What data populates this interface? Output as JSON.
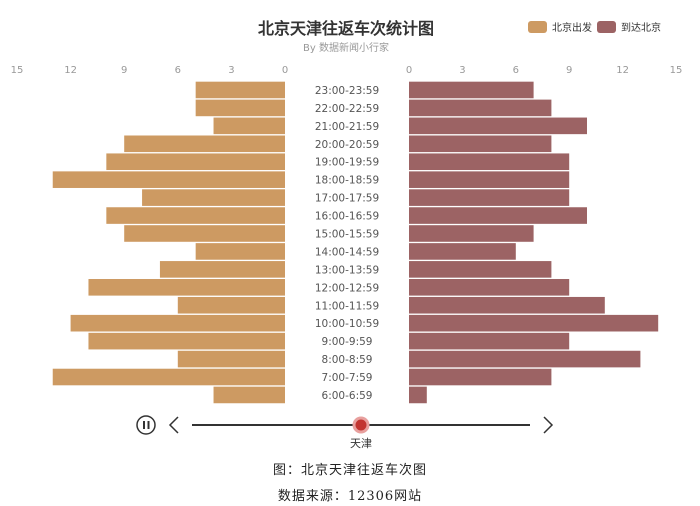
{
  "chart_data": {
    "type": "bar",
    "layout": "butterfly",
    "title": "北京天津往返车次统计图",
    "subtitle": "By 数据新闻小行家",
    "categories": [
      "23:00-23:59",
      "22:00-22:59",
      "21:00-21:59",
      "20:00-20:59",
      "19:00-19:59",
      "18:00-18:59",
      "17:00-17:59",
      "16:00-16:59",
      "15:00-15:59",
      "14:00-14:59",
      "13:00-13:59",
      "12:00-12:59",
      "11:00-11:59",
      "10:00-10:59",
      "9:00-9:59",
      "8:00-8:59",
      "7:00-7:59",
      "6:00-6:59"
    ],
    "series": [
      {
        "name": "北京出发",
        "color": "#cd9a62",
        "values": [
          5,
          5,
          4,
          9,
          10,
          13,
          8,
          10,
          9,
          5,
          7,
          11,
          6,
          12,
          11,
          6,
          13,
          4
        ]
      },
      {
        "name": "到达北京",
        "color": "#9c6364",
        "values": [
          7,
          8,
          10,
          8,
          9,
          9,
          9,
          10,
          7,
          6,
          8,
          9,
          11,
          14,
          9,
          13,
          8,
          1
        ]
      }
    ],
    "xlim": [
      0,
      15
    ],
    "left_ticks": [
      "15",
      "12",
      "9",
      "6",
      "3",
      "0"
    ],
    "right_ticks": [
      "0",
      "3",
      "6",
      "9",
      "12",
      "15"
    ],
    "legend_position": "top-right",
    "grid": false
  },
  "timeline": {
    "current_label": "天津",
    "play_state": "paused"
  },
  "captions": {
    "figure": "图：北京天津往返车次图",
    "source": "数据来源：12306网站"
  }
}
